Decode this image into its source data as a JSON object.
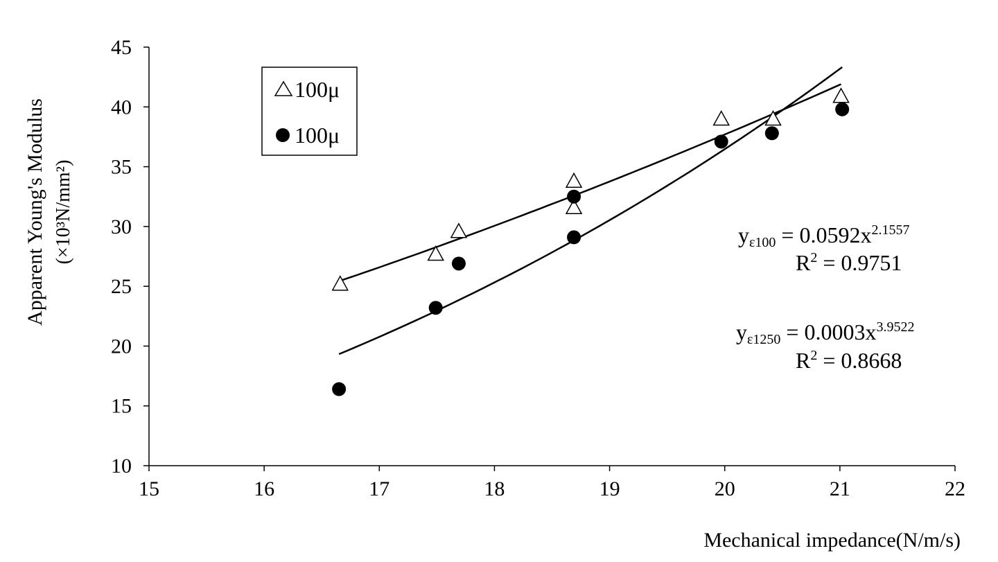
{
  "chart_data": {
    "type": "scatter",
    "xlabel": "Mechanical impedance(N/m/s)",
    "ylabel_line1": "Apparent  Young's Modulus",
    "ylabel_line2": "(×10³N/mm²)",
    "xlim": [
      15,
      22
    ],
    "ylim": [
      10,
      45
    ],
    "xticks": [
      "15",
      "16",
      "17",
      "18",
      "19",
      "20",
      "21",
      "22"
    ],
    "yticks": [
      "10",
      "15",
      "20",
      "25",
      "30",
      "35",
      "40",
      "45"
    ],
    "grid": false,
    "legend_placement": "top-left",
    "series": [
      {
        "name": "100μ",
        "marker": "open-triangle",
        "x": [
          16.66,
          17.49,
          17.69,
          18.69,
          18.69,
          19.97,
          20.42,
          21.01
        ],
        "y": [
          25.2,
          27.7,
          29.6,
          33.8,
          31.6,
          39.0,
          39.0,
          40.9
        ],
        "trendline": "power"
      },
      {
        "name": "100μ",
        "marker": "filled-circle",
        "x": [
          16.65,
          17.49,
          17.69,
          18.69,
          18.69,
          19.97,
          20.41,
          21.02
        ],
        "y": [
          16.4,
          23.2,
          26.9,
          32.5,
          29.1,
          37.1,
          37.8,
          39.8
        ],
        "trendline": "power"
      }
    ],
    "annotations": [
      {
        "y_main": "y",
        "y_sub": "ε100",
        "eq": " = 0.0592x",
        "exp": "2.1557",
        "r2_label": "R",
        "r2_exp": "2",
        "r2_value": " = 0.9751"
      },
      {
        "y_main": "y",
        "y_sub": "ε1250",
        "eq": " = 0.0003x",
        "exp": "3.9522",
        "r2_label": "R",
        "r2_exp": "2",
        "r2_value": " = 0.8668"
      }
    ]
  }
}
